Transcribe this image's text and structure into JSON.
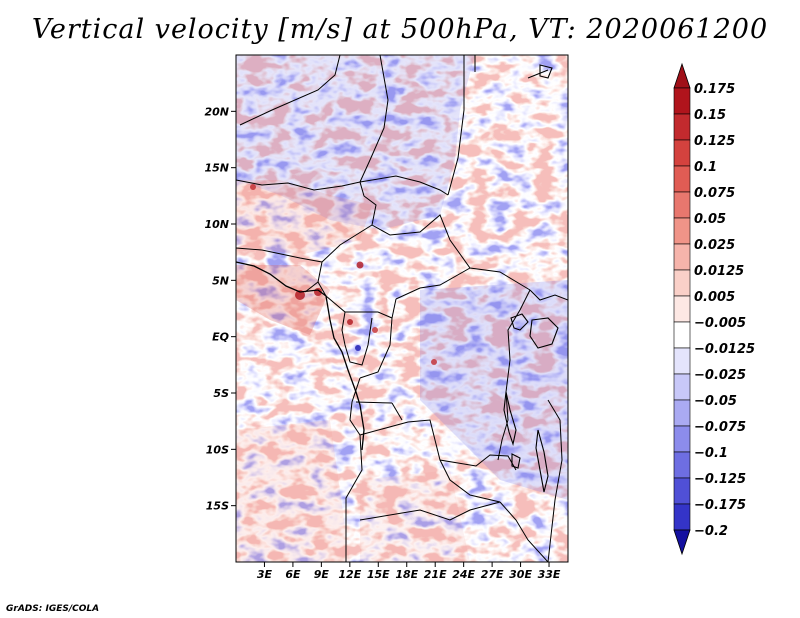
{
  "title": "Vertical velocity [m/s] at 500hPa, VT: 2020061200",
  "credit": "GrADS: IGES/COLA",
  "map": {
    "lon_range": [
      0,
      35
    ],
    "lat_range": [
      -20,
      25
    ],
    "lat_ticks": [
      {
        "value": 20,
        "label": "20N"
      },
      {
        "value": 15,
        "label": "15N"
      },
      {
        "value": 10,
        "label": "10N"
      },
      {
        "value": 5,
        "label": "5N"
      },
      {
        "value": 0,
        "label": "EQ"
      },
      {
        "value": -5,
        "label": "5S"
      },
      {
        "value": -10,
        "label": "10S"
      },
      {
        "value": -15,
        "label": "15S"
      }
    ],
    "lon_ticks": [
      {
        "value": 3,
        "label": "3E"
      },
      {
        "value": 6,
        "label": "6E"
      },
      {
        "value": 9,
        "label": "9E"
      },
      {
        "value": 12,
        "label": "12E"
      },
      {
        "value": 15,
        "label": "15E"
      },
      {
        "value": 18,
        "label": "18E"
      },
      {
        "value": 21,
        "label": "21E"
      },
      {
        "value": 24,
        "label": "24E"
      },
      {
        "value": 27,
        "label": "27E"
      },
      {
        "value": 30,
        "label": "30E"
      },
      {
        "value": 33,
        "label": "33E"
      }
    ]
  },
  "colorbar": {
    "levels": [
      {
        "label": "0.175",
        "color": "#b0141c"
      },
      {
        "label": "0.15",
        "color": "#c22a2e"
      },
      {
        "label": "0.125",
        "color": "#d4423e"
      },
      {
        "label": "0.1",
        "color": "#e05c54"
      },
      {
        "label": "0.075",
        "color": "#e8776e"
      },
      {
        "label": "0.05",
        "color": "#f09488"
      },
      {
        "label": "0.025",
        "color": "#f6b4ab"
      },
      {
        "label": "0.0125",
        "color": "#fad0c8"
      },
      {
        "label": "0.005",
        "color": "#fde8e4"
      },
      {
        "label": "−0.005",
        "color": "#ffffff"
      },
      {
        "label": "−0.0125",
        "color": "#e4e4fc"
      },
      {
        "label": "−0.025",
        "color": "#c8c8f8"
      },
      {
        "label": "−0.05",
        "color": "#aaaaf2"
      },
      {
        "label": "−0.075",
        "color": "#8c8cec"
      },
      {
        "label": "−0.1",
        "color": "#6e6ee2"
      },
      {
        "label": "−0.125",
        "color": "#5050d6"
      },
      {
        "label": "−0.175",
        "color": "#3434c8"
      },
      {
        "label": "−0.2",
        "color": "#1c1cb0"
      }
    ],
    "top_arrow_color": "#a01018",
    "bottom_arrow_color": "#1410a0"
  }
}
